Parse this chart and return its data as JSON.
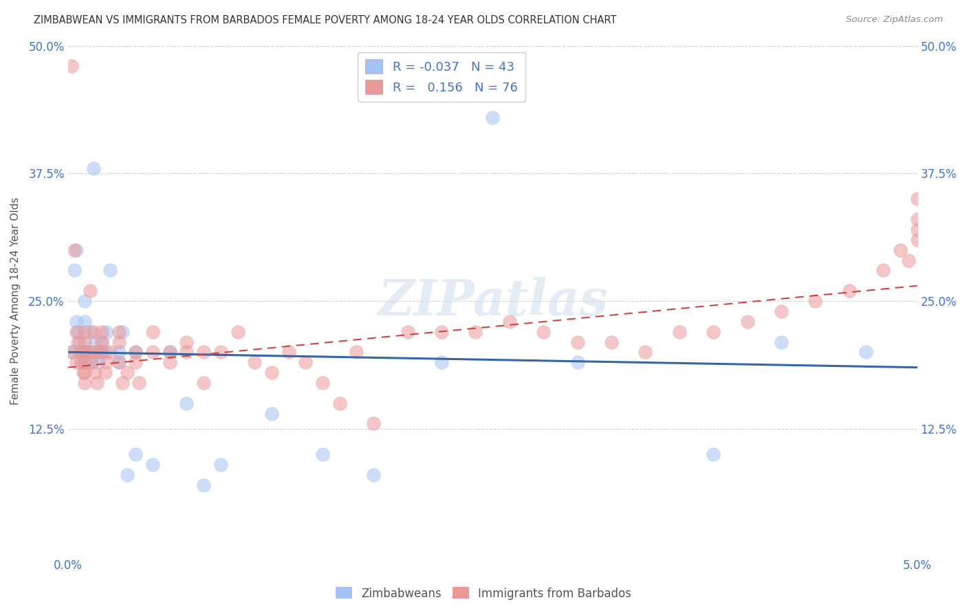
{
  "title": "ZIMBABWEAN VS IMMIGRANTS FROM BARBADOS FEMALE POVERTY AMONG 18-24 YEAR OLDS CORRELATION CHART",
  "source": "Source: ZipAtlas.com",
  "ylabel": "Female Poverty Among 18-24 Year Olds",
  "blue_label": "Zimbabweans",
  "pink_label": "Immigrants from Barbados",
  "blue_R": -0.037,
  "blue_N": 43,
  "pink_R": 0.156,
  "pink_N": 76,
  "xlim": [
    0.0,
    0.05
  ],
  "ylim": [
    0.0,
    0.5
  ],
  "blue_color": "#a4c2f4",
  "pink_color": "#ea9999",
  "blue_line_color": "#3465a4",
  "pink_line_color": "#cc4444",
  "watermark": "ZIPatlas",
  "blue_x": [
    0.0002,
    0.0004,
    0.0005,
    0.0005,
    0.0006,
    0.0007,
    0.0008,
    0.0009,
    0.001,
    0.001,
    0.001,
    0.0012,
    0.0013,
    0.0014,
    0.0015,
    0.0016,
    0.0017,
    0.0018,
    0.002,
    0.002,
    0.0022,
    0.0023,
    0.0025,
    0.003,
    0.003,
    0.0032,
    0.0035,
    0.004,
    0.004,
    0.005,
    0.006,
    0.007,
    0.008,
    0.009,
    0.012,
    0.015,
    0.018,
    0.022,
    0.025,
    0.03,
    0.038,
    0.042,
    0.047
  ],
  "blue_y": [
    0.2,
    0.28,
    0.23,
    0.3,
    0.22,
    0.21,
    0.2,
    0.19,
    0.2,
    0.23,
    0.25,
    0.2,
    0.22,
    0.19,
    0.38,
    0.21,
    0.2,
    0.19,
    0.2,
    0.21,
    0.2,
    0.22,
    0.28,
    0.2,
    0.19,
    0.22,
    0.08,
    0.2,
    0.1,
    0.09,
    0.2,
    0.15,
    0.07,
    0.09,
    0.14,
    0.1,
    0.08,
    0.19,
    0.43,
    0.19,
    0.1,
    0.21,
    0.2
  ],
  "pink_x": [
    0.0002,
    0.0003,
    0.0004,
    0.0005,
    0.0005,
    0.0006,
    0.0007,
    0.0008,
    0.0009,
    0.001,
    0.001,
    0.001,
    0.001,
    0.001,
    0.001,
    0.0012,
    0.0013,
    0.0014,
    0.0015,
    0.0015,
    0.0016,
    0.0017,
    0.0018,
    0.002,
    0.002,
    0.002,
    0.0022,
    0.0023,
    0.0025,
    0.003,
    0.003,
    0.003,
    0.0032,
    0.0035,
    0.004,
    0.004,
    0.0042,
    0.005,
    0.005,
    0.006,
    0.006,
    0.007,
    0.007,
    0.008,
    0.008,
    0.009,
    0.01,
    0.011,
    0.012,
    0.013,
    0.014,
    0.015,
    0.016,
    0.017,
    0.018,
    0.02,
    0.022,
    0.024,
    0.026,
    0.028,
    0.03,
    0.032,
    0.034,
    0.036,
    0.038,
    0.04,
    0.042,
    0.044,
    0.046,
    0.048,
    0.049,
    0.0495,
    0.05,
    0.05,
    0.05,
    0.05
  ],
  "pink_y": [
    0.48,
    0.2,
    0.3,
    0.22,
    0.19,
    0.21,
    0.2,
    0.19,
    0.18,
    0.2,
    0.21,
    0.22,
    0.19,
    0.18,
    0.17,
    0.2,
    0.26,
    0.19,
    0.2,
    0.22,
    0.18,
    0.17,
    0.2,
    0.21,
    0.22,
    0.2,
    0.18,
    0.19,
    0.2,
    0.21,
    0.22,
    0.19,
    0.17,
    0.18,
    0.19,
    0.2,
    0.17,
    0.2,
    0.22,
    0.19,
    0.2,
    0.21,
    0.2,
    0.17,
    0.2,
    0.2,
    0.22,
    0.19,
    0.18,
    0.2,
    0.19,
    0.17,
    0.15,
    0.2,
    0.13,
    0.22,
    0.22,
    0.22,
    0.23,
    0.22,
    0.21,
    0.21,
    0.2,
    0.22,
    0.22,
    0.23,
    0.24,
    0.25,
    0.26,
    0.28,
    0.3,
    0.29,
    0.31,
    0.32,
    0.33,
    0.35
  ]
}
